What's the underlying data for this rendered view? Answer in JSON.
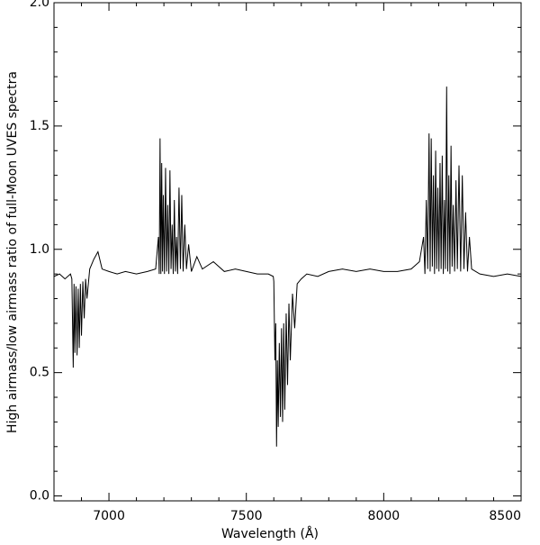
{
  "chart_data": {
    "type": "line",
    "xlabel": "Wavelength (Å)",
    "ylabel": "High airmass/low airmass ratio of full-Moon UVES spectra",
    "color": "#000000",
    "x": [
      6800,
      6820,
      6840,
      6860,
      6865,
      6870,
      6873,
      6876,
      6880,
      6884,
      6888,
      6892,
      6896,
      6900,
      6905,
      6910,
      6915,
      6920,
      6930,
      6945,
      6960,
      6975,
      7000,
      7030,
      7060,
      7100,
      7140,
      7170,
      7180,
      7183,
      7186,
      7189,
      7192,
      7195,
      7198,
      7202,
      7206,
      7210,
      7214,
      7218,
      7222,
      7226,
      7230,
      7234,
      7238,
      7242,
      7246,
      7250,
      7255,
      7260,
      7265,
      7270,
      7276,
      7282,
      7290,
      7300,
      7320,
      7340,
      7380,
      7420,
      7460,
      7500,
      7540,
      7580,
      7598,
      7600,
      7604,
      7607,
      7610,
      7613,
      7616,
      7620,
      7624,
      7628,
      7632,
      7636,
      7640,
      7645,
      7650,
      7655,
      7660,
      7668,
      7676,
      7685,
      7700,
      7720,
      7760,
      7800,
      7850,
      7900,
      7950,
      8000,
      8050,
      8100,
      8130,
      8145,
      8150,
      8155,
      8160,
      8165,
      8169,
      8173,
      8177,
      8181,
      8185,
      8189,
      8193,
      8197,
      8201,
      8205,
      8209,
      8213,
      8217,
      8221,
      8225,
      8229,
      8233,
      8237,
      8241,
      8245,
      8249,
      8253,
      8258,
      8263,
      8268,
      8274,
      8280,
      8286,
      8292,
      8298,
      8305,
      8312,
      8320,
      8350,
      8400,
      8450,
      8500
    ],
    "values": [
      0.89,
      0.9,
      0.88,
      0.9,
      0.88,
      0.52,
      0.86,
      0.58,
      0.85,
      0.57,
      0.84,
      0.6,
      0.86,
      0.65,
      0.87,
      0.72,
      0.88,
      0.8,
      0.92,
      0.96,
      0.99,
      0.92,
      0.91,
      0.9,
      0.91,
      0.9,
      0.91,
      0.92,
      1.05,
      0.9,
      1.45,
      0.9,
      1.35,
      0.91,
      1.22,
      0.9,
      1.33,
      0.91,
      1.18,
      0.9,
      1.32,
      0.92,
      1.1,
      0.9,
      1.2,
      0.91,
      1.05,
      0.9,
      1.25,
      0.92,
      1.22,
      0.91,
      1.1,
      0.92,
      1.02,
      0.91,
      0.97,
      0.92,
      0.95,
      0.91,
      0.92,
      0.91,
      0.9,
      0.9,
      0.89,
      0.87,
      0.55,
      0.7,
      0.2,
      0.55,
      0.28,
      0.62,
      0.32,
      0.68,
      0.3,
      0.7,
      0.35,
      0.74,
      0.45,
      0.78,
      0.55,
      0.82,
      0.68,
      0.86,
      0.88,
      0.9,
      0.89,
      0.91,
      0.92,
      0.91,
      0.92,
      0.91,
      0.91,
      0.92,
      0.95,
      1.05,
      0.9,
      1.2,
      0.92,
      1.47,
      0.91,
      1.45,
      0.93,
      1.3,
      0.9,
      1.4,
      0.92,
      1.25,
      0.91,
      1.35,
      0.92,
      1.38,
      0.9,
      1.2,
      0.92,
      1.66,
      0.91,
      1.3,
      0.9,
      1.42,
      0.93,
      1.18,
      0.91,
      1.28,
      0.92,
      1.34,
      0.91,
      1.3,
      0.92,
      1.15,
      0.91,
      1.05,
      0.92,
      0.9,
      0.89,
      0.9,
      0.89
    ],
    "xlim": [
      6800,
      8500
    ],
    "ylim": [
      -0.02,
      2.0
    ],
    "xticks": [
      7000,
      7500,
      8000,
      8500
    ],
    "yticks": [
      {
        "value": 0,
        "label": "0.0"
      },
      0.5,
      {
        "value": 1,
        "label": "1.0"
      },
      1.5,
      {
        "value": 2,
        "label": "2.0"
      }
    ],
    "xminorticks": [
      6800,
      6900,
      7100,
      7200,
      7300,
      7400,
      7600,
      7700,
      7800,
      7900,
      8100,
      8200,
      8300,
      8400
    ],
    "yminorticks": [
      0.1,
      0.2,
      0.3,
      0.4,
      0.6,
      0.7,
      0.8,
      0.9,
      1.1,
      1.2,
      1.3,
      1.4,
      1.6,
      1.7,
      1.8,
      1.9
    ]
  }
}
